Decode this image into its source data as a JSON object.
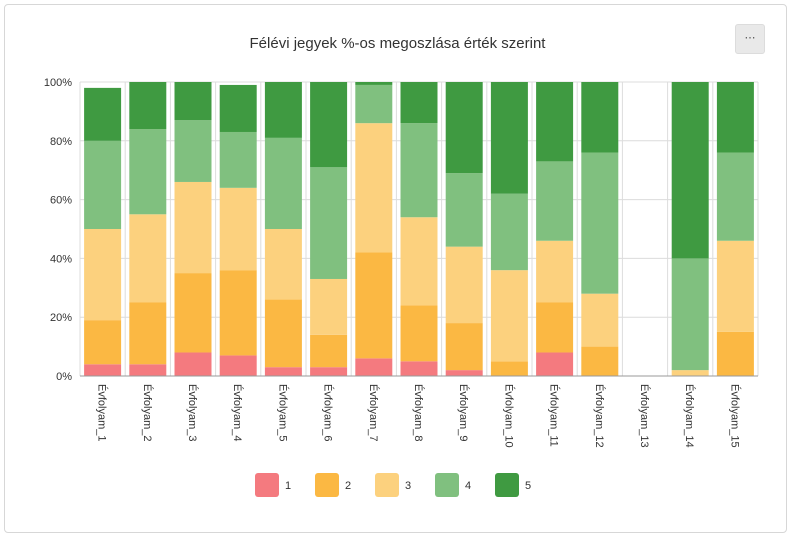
{
  "header": {
    "menu_label": "⋯"
  },
  "colors": {
    "1": "#f47a7f",
    "2": "#fbb843",
    "3": "#fcd17e",
    "4": "#80c07f",
    "5": "#3f9a41",
    "grid": "#dcdcdc",
    "axis": "#999999"
  },
  "chart_data": {
    "type": "bar",
    "stacked": true,
    "title": "Félévi jegyek %-os megoszlása érték szerint",
    "xlabel": "",
    "ylabel": "",
    "ylim": [
      0,
      100
    ],
    "yticks": [
      "0%",
      "20%",
      "40%",
      "60%",
      "80%",
      "100%"
    ],
    "grid": true,
    "legend_position": "bottom",
    "categories": [
      "Évfolyam_1",
      "Évfolyam_2",
      "Évfolyam_3",
      "Évfolyam_4",
      "Évfolyam_5",
      "Évfolyam_6",
      "Évfolyam_7",
      "Évfolyam_8",
      "Évfolyam_9",
      "Évfolyam_10",
      "Évfolyam_11",
      "Évfolyam_12",
      "Évfolyam_13",
      "Évfolyam_14",
      "Évfolyam_15"
    ],
    "series": [
      {
        "name": "1",
        "values": [
          4,
          4,
          8,
          7,
          3,
          3,
          6,
          5,
          2,
          0,
          8,
          0,
          0,
          0,
          0
        ]
      },
      {
        "name": "2",
        "values": [
          15,
          21,
          27,
          29,
          23,
          11,
          36,
          19,
          16,
          5,
          17,
          10,
          0,
          0,
          15
        ]
      },
      {
        "name": "3",
        "values": [
          31,
          30,
          31,
          28,
          24,
          19,
          44,
          30,
          26,
          31,
          21,
          18,
          0,
          2,
          31
        ]
      },
      {
        "name": "4",
        "values": [
          30,
          29,
          21,
          19,
          31,
          38,
          13,
          32,
          25,
          26,
          27,
          48,
          0,
          38,
          30
        ]
      },
      {
        "name": "5",
        "values": [
          18,
          16,
          13,
          16,
          19,
          29,
          1,
          14,
          31,
          38,
          27,
          24,
          0,
          60,
          24
        ]
      }
    ]
  }
}
